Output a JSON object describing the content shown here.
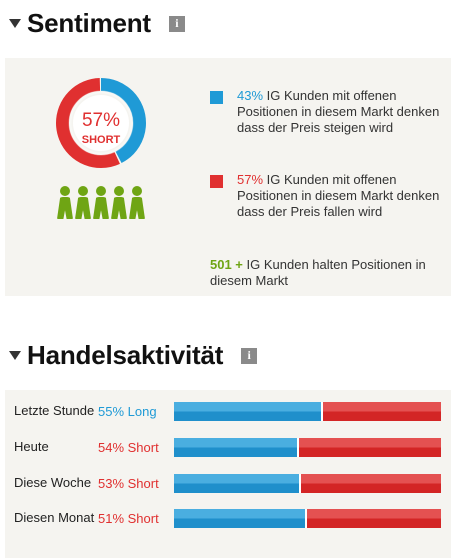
{
  "sentiment": {
    "title": "Sentiment",
    "info_icon": "i",
    "donut": {
      "long_pct": 43,
      "short_pct": 57,
      "center_value": "57%",
      "center_label": "SHORT"
    },
    "legend_long": {
      "pct": "43%",
      "text": " IG Kunden mit offenen Positionen in diesem Markt denken dass der Preis steigen wird"
    },
    "legend_short": {
      "pct": "57%",
      "text": " IG Kunden mit offenen Positionen in diesem Markt denken dass der Preis fallen wird"
    },
    "clients": {
      "count": "501 +",
      "text": " IG Kunden halten Positionen in diesem Markt"
    },
    "people_count": 5
  },
  "activity": {
    "title": "Handelsaktivität",
    "info_icon": "i",
    "rows": [
      {
        "label": "Letzte Stunde",
        "value": "55% Long",
        "direction": "long",
        "long_pct": 55
      },
      {
        "label": "Heute",
        "value": "54% Short",
        "direction": "short",
        "long_pct": 46
      },
      {
        "label": "Diese Woche",
        "value": "53% Short",
        "direction": "short",
        "long_pct": 47
      },
      {
        "label": "Diesen Monat",
        "value": "51% Short",
        "direction": "short",
        "long_pct": 49
      }
    ]
  },
  "colors": {
    "long": "#1f9ad6",
    "short": "#e03030",
    "clients": "#6fa514",
    "panel": "#f5f4f0"
  }
}
